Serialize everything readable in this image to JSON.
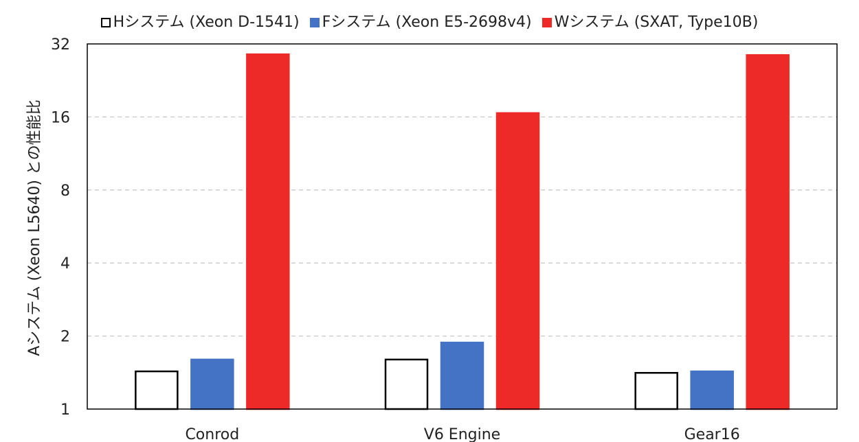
{
  "chart_data": {
    "type": "bar",
    "categories": [
      "Conrod",
      "V6 Engine",
      "Gear16"
    ],
    "series": [
      {
        "name": "Hシステム (Xeon D-1541)",
        "color": "#ffffff",
        "stroke": "#000000",
        "values": [
          1.43,
          1.6,
          1.41
        ]
      },
      {
        "name": "Fシステム (Xeon E5-2698v4)",
        "color": "#4472c4",
        "stroke": "#4472c4",
        "values": [
          1.6,
          1.88,
          1.43
        ]
      },
      {
        "name": "Wシステム (SXAT, Type10B)",
        "color": "#ee2a28",
        "stroke": "#ee2a28",
        "values": [
          29.0,
          16.6,
          28.8
        ]
      }
    ],
    "ylabel": "Aシステム (Xeon L5640) との性能比",
    "yscale": "log2",
    "ylim": [
      1,
      32
    ],
    "yticks": [
      1,
      2,
      4,
      8,
      16,
      32
    ],
    "grid": true,
    "legend_position": "top"
  }
}
